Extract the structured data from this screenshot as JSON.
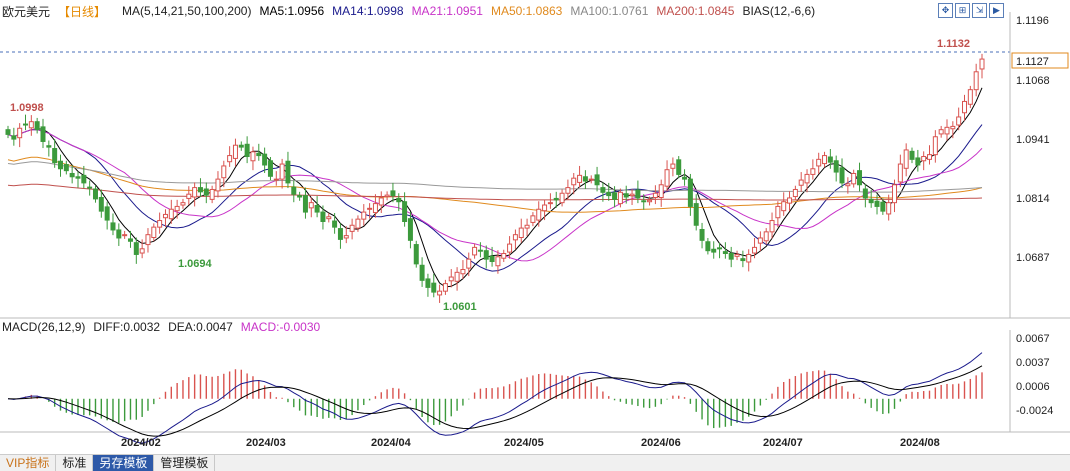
{
  "legend": {
    "symbol": "欧元美元",
    "period": "【日线】",
    "ma_params": "MA(5,14,21,50,100,200)",
    "ma5": "MA5:1.0956",
    "ma14": "MA14:1.0998",
    "ma21": "MA21:1.0951",
    "ma50": "MA50:1.0863",
    "ma100": "MA100:1.0761",
    "ma200": "MA200:1.0845",
    "bias": "BIAS(12,-6,6)"
  },
  "toolbar": {
    "icons": [
      "move-icon",
      "add-icon",
      "fit-icon",
      "next-icon"
    ],
    "glyphs": [
      "✥",
      "⊞",
      "⇲",
      "▶"
    ]
  },
  "macd_legend": {
    "params": "MACD(26,12,9)",
    "diff": "DIFF:0.0032",
    "dea": "DEA:0.0047",
    "macd": "MACD:-0.0030"
  },
  "bottom_tabs": [
    "VIP指标",
    "标准",
    "另存模板",
    "管理模板"
  ],
  "colors": {
    "up": "#d9534f",
    "down": "#3c9a3c",
    "ma5": "#000000",
    "ma14": "#1a1a8c",
    "ma21": "#c833c8",
    "ma50": "#e08a1e",
    "ma100": "#999999",
    "ma200": "#c0504d",
    "price_line": "#4a6fb8"
  },
  "chart_data": [
    {
      "type": "candlestick",
      "title": "欧元美元 日线",
      "x_tick_labels": [
        "2024/02",
        "2024/03",
        "2024/04",
        "2024/05",
        "2024/06",
        "2024/07",
        "2024/08"
      ],
      "y_tick_labels": [
        "1.1196",
        "1.1068",
        "1.0941",
        "1.0814",
        "1.0687"
      ],
      "ylim": [
        1.0575,
        1.1225
      ],
      "current_price": "1.1127",
      "annotations": [
        {
          "label": "1.0998",
          "type": "high"
        },
        {
          "label": "1.0694",
          "type": "low"
        },
        {
          "label": "1.0601",
          "type": "low"
        },
        {
          "label": "1.1132",
          "type": "high"
        }
      ],
      "closes": [
        1.0965,
        1.0955,
        1.0978,
        1.0985,
        1.0992,
        1.0975,
        1.095,
        1.0938,
        1.0905,
        1.0892,
        1.0888,
        1.0875,
        1.0872,
        1.0862,
        1.0852,
        1.0828,
        1.0802,
        1.0783,
        1.0762,
        1.0745,
        1.0752,
        1.0738,
        1.071,
        1.0722,
        1.0752,
        1.0768,
        1.0782,
        1.0795,
        1.0806,
        1.0812,
        1.082,
        1.0838,
        1.0852,
        1.0843,
        1.0836,
        1.0848,
        1.087,
        1.0898,
        1.092,
        1.0942,
        1.0938,
        1.0918,
        1.0928,
        1.092,
        1.09,
        1.0876,
        1.087,
        1.0902,
        1.0862,
        1.0838,
        1.0832,
        1.08,
        1.082,
        1.08,
        1.078,
        1.079,
        1.0768,
        1.0742,
        1.075,
        1.0772,
        1.0785,
        1.08,
        1.0808,
        1.0818,
        1.083,
        1.0836,
        1.0835,
        1.0822,
        1.078,
        1.074,
        1.069,
        1.0655,
        1.064,
        1.063,
        1.0632,
        1.0648,
        1.0662,
        1.0672,
        1.0678,
        1.07,
        1.0725,
        1.0718,
        1.07,
        1.0695,
        1.0705,
        1.0712,
        1.0732,
        1.0752,
        1.0766,
        1.0772,
        1.0792,
        1.0806,
        1.0815,
        1.082,
        1.0826,
        1.084,
        1.0852,
        1.0872,
        1.0878,
        1.0866,
        1.087,
        1.0858,
        1.0842,
        1.0835,
        1.0827,
        1.0842,
        1.0832,
        1.0838,
        1.083,
        1.0822,
        1.0825,
        1.084,
        1.0858,
        1.089,
        1.0902,
        1.088,
        1.087,
        1.0812,
        1.0772,
        1.074,
        1.0718,
        1.0715,
        1.0722,
        1.0712,
        1.07,
        1.071,
        1.0697,
        1.071,
        1.0725,
        1.0745,
        1.0758,
        1.0782,
        1.0812,
        1.0822,
        1.083,
        1.0848,
        1.0868,
        1.088,
        1.0892,
        1.0912,
        1.092,
        1.0906,
        1.0885,
        1.0862,
        1.086,
        1.0882,
        1.0858,
        1.083,
        1.082,
        1.0812,
        1.0802,
        1.082,
        1.0858,
        1.0902,
        1.0932,
        1.0912,
        1.09,
        1.0918,
        1.0922,
        1.096,
        1.0975,
        1.098,
        1.0982,
        1.1002,
        1.1035,
        1.106,
        1.1098,
        1.1125
      ],
      "highs_overlay": "computed from closes",
      "ma_series": [
        "MA5",
        "MA14",
        "MA21",
        "MA50",
        "MA100",
        "MA200"
      ]
    },
    {
      "type": "bar-line",
      "title": "MACD(26,12,9)",
      "y_tick_labels": [
        "0.0067",
        "0.0037",
        "0.0006",
        "-0.0024"
      ],
      "ylim": [
        -0.0045,
        0.0085
      ],
      "series": [
        {
          "name": "DIFF",
          "value": "0.0032"
        },
        {
          "name": "DEA",
          "value": "0.0047"
        },
        {
          "name": "MACD",
          "value": "-0.0030"
        }
      ]
    }
  ]
}
